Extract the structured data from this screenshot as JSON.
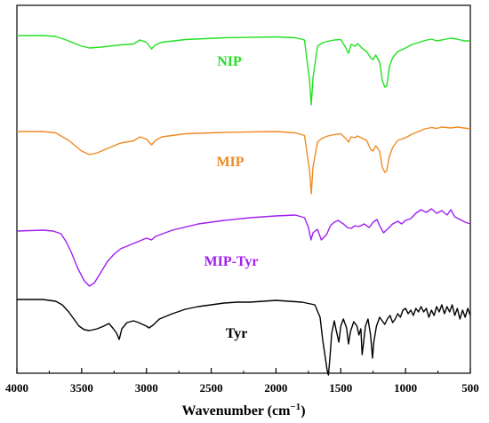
{
  "chart_data": {
    "type": "line",
    "xlabel_main": "Wavenumber (cm",
    "xlabel_sup": "−1",
    "xlabel_end": ")",
    "xlim": [
      4000,
      500
    ],
    "x_ticks": [
      4000,
      3500,
      3000,
      2500,
      2000,
      1500,
      1000,
      500
    ],
    "y_ticks_shown": false,
    "series": [
      {
        "name": "NIP",
        "color": "#22e022",
        "points": [
          [
            4000,
            0.0
          ],
          [
            3800,
            0.0
          ],
          [
            3700,
            -1.0
          ],
          [
            3620,
            -5.0
          ],
          [
            3500,
            -12.0
          ],
          [
            3440,
            -14.0
          ],
          [
            3350,
            -13.0
          ],
          [
            3200,
            -10.5
          ],
          [
            3100,
            -9.5
          ],
          [
            3050,
            -5.0
          ],
          [
            3000,
            -7.5
          ],
          [
            2960,
            -15.0
          ],
          [
            2930,
            -10.5
          ],
          [
            2880,
            -7.5
          ],
          [
            2700,
            -4.5
          ],
          [
            2400,
            -2.5
          ],
          [
            2000,
            -1.5
          ],
          [
            1850,
            -2.5
          ],
          [
            1780,
            -5.0
          ],
          [
            1740,
            -52.0
          ],
          [
            1728,
            -78.0
          ],
          [
            1715,
            -48.0
          ],
          [
            1680,
            -12.0
          ],
          [
            1640,
            -8.0
          ],
          [
            1600,
            -6.5
          ],
          [
            1550,
            -5.0
          ],
          [
            1500,
            -4.5
          ],
          [
            1460,
            -14.0
          ],
          [
            1440,
            -20.0
          ],
          [
            1420,
            -10.0
          ],
          [
            1390,
            -12.0
          ],
          [
            1370,
            -9.0
          ],
          [
            1330,
            -15.0
          ],
          [
            1300,
            -18.0
          ],
          [
            1270,
            -25.0
          ],
          [
            1250,
            -27.0
          ],
          [
            1230,
            -22.0
          ],
          [
            1200,
            -30.0
          ],
          [
            1180,
            -50.0
          ],
          [
            1160,
            -58.0
          ],
          [
            1145,
            -57.0
          ],
          [
            1125,
            -35.0
          ],
          [
            1100,
            -25.0
          ],
          [
            1060,
            -18.0
          ],
          [
            1000,
            -14.0
          ],
          [
            950,
            -10.0
          ],
          [
            900,
            -8.0
          ],
          [
            850,
            -5.5
          ],
          [
            800,
            -4.0
          ],
          [
            760,
            -6.0
          ],
          [
            720,
            -5.0
          ],
          [
            650,
            -3.0
          ],
          [
            600,
            -4.0
          ],
          [
            550,
            -6.0
          ],
          [
            500,
            -6.0
          ]
        ]
      },
      {
        "name": "MIP",
        "color": "#f08a24",
        "points": [
          [
            4000,
            0.0
          ],
          [
            3800,
            0.0
          ],
          [
            3700,
            -1.5
          ],
          [
            3600,
            -10.0
          ],
          [
            3500,
            -22.0
          ],
          [
            3440,
            -26.0
          ],
          [
            3380,
            -24.0
          ],
          [
            3300,
            -19.0
          ],
          [
            3200,
            -13.0
          ],
          [
            3100,
            -10.5
          ],
          [
            3050,
            -6.0
          ],
          [
            3000,
            -8.5
          ],
          [
            2960,
            -15.0
          ],
          [
            2930,
            -10.0
          ],
          [
            2880,
            -6.0
          ],
          [
            2700,
            -2.5
          ],
          [
            2400,
            -1.0
          ],
          [
            2000,
            0.0
          ],
          [
            1850,
            -1.5
          ],
          [
            1780,
            -4.5
          ],
          [
            1740,
            -45.0
          ],
          [
            1728,
            -70.0
          ],
          [
            1715,
            -40.0
          ],
          [
            1680,
            -12.0
          ],
          [
            1650,
            -8.0
          ],
          [
            1600,
            -5.0
          ],
          [
            1550,
            -3.5
          ],
          [
            1500,
            -2.5
          ],
          [
            1460,
            -8.0
          ],
          [
            1440,
            -12.0
          ],
          [
            1420,
            -6.0
          ],
          [
            1390,
            -7.0
          ],
          [
            1370,
            -5.0
          ],
          [
            1330,
            -8.0
          ],
          [
            1300,
            -10.0
          ],
          [
            1270,
            -20.0
          ],
          [
            1250,
            -22.0
          ],
          [
            1230,
            -16.0
          ],
          [
            1200,
            -22.0
          ],
          [
            1180,
            -40.0
          ],
          [
            1160,
            -46.0
          ],
          [
            1145,
            -44.0
          ],
          [
            1125,
            -28.0
          ],
          [
            1100,
            -18.0
          ],
          [
            1060,
            -10.0
          ],
          [
            1000,
            -7.0
          ],
          [
            950,
            -3.0
          ],
          [
            900,
            0.0
          ],
          [
            850,
            3.0
          ],
          [
            800,
            4.5
          ],
          [
            760,
            3.5
          ],
          [
            720,
            5.0
          ],
          [
            650,
            4.0
          ],
          [
            600,
            5.0
          ],
          [
            550,
            4.0
          ],
          [
            500,
            3.0
          ]
        ]
      },
      {
        "name": "MIP-Tyr",
        "color": "#a020f0",
        "points": [
          [
            4000,
            0.0
          ],
          [
            3800,
            1.0
          ],
          [
            3720,
            0.0
          ],
          [
            3660,
            -3.0
          ],
          [
            3620,
            -12.0
          ],
          [
            3580,
            -24.0
          ],
          [
            3530,
            -42.0
          ],
          [
            3480,
            -56.0
          ],
          [
            3440,
            -62.0
          ],
          [
            3400,
            -58.0
          ],
          [
            3350,
            -46.0
          ],
          [
            3300,
            -34.0
          ],
          [
            3250,
            -26.0
          ],
          [
            3200,
            -20.0
          ],
          [
            3100,
            -14.0
          ],
          [
            3000,
            -8.0
          ],
          [
            2960,
            -10.0
          ],
          [
            2930,
            -6.0
          ],
          [
            2800,
            1.0
          ],
          [
            2600,
            8.0
          ],
          [
            2400,
            12.0
          ],
          [
            2200,
            15.0
          ],
          [
            2000,
            17.0
          ],
          [
            1850,
            18.0
          ],
          [
            1780,
            15.0
          ],
          [
            1750,
            4.0
          ],
          [
            1730,
            -10.0
          ],
          [
            1715,
            -2.0
          ],
          [
            1680,
            2.0
          ],
          [
            1650,
            -10.0
          ],
          [
            1610,
            -4.0
          ],
          [
            1580,
            6.0
          ],
          [
            1550,
            10.0
          ],
          [
            1520,
            12.0
          ],
          [
            1480,
            8.0
          ],
          [
            1450,
            4.0
          ],
          [
            1420,
            3.0
          ],
          [
            1390,
            6.0
          ],
          [
            1360,
            5.0
          ],
          [
            1320,
            8.0
          ],
          [
            1280,
            4.0
          ],
          [
            1250,
            10.0
          ],
          [
            1220,
            13.0
          ],
          [
            1200,
            6.0
          ],
          [
            1170,
            -2.0
          ],
          [
            1140,
            2.0
          ],
          [
            1100,
            8.0
          ],
          [
            1060,
            11.0
          ],
          [
            1030,
            8.0
          ],
          [
            1000,
            12.0
          ],
          [
            960,
            14.0
          ],
          [
            920,
            20.0
          ],
          [
            880,
            24.0
          ],
          [
            840,
            21.0
          ],
          [
            800,
            25.0
          ],
          [
            760,
            20.0
          ],
          [
            720,
            23.0
          ],
          [
            680,
            18.0
          ],
          [
            650,
            24.0
          ],
          [
            620,
            16.0
          ],
          [
            580,
            13.0
          ],
          [
            540,
            10.0
          ],
          [
            500,
            8.0
          ]
        ]
      },
      {
        "name": "Tyr",
        "color": "#000000",
        "points": [
          [
            4000,
            0.0
          ],
          [
            3800,
            0.0
          ],
          [
            3700,
            -2.0
          ],
          [
            3650,
            -6.0
          ],
          [
            3600,
            -14.0
          ],
          [
            3560,
            -22.0
          ],
          [
            3520,
            -30.0
          ],
          [
            3480,
            -34.0
          ],
          [
            3440,
            -35.0
          ],
          [
            3380,
            -33.0
          ],
          [
            3330,
            -30.0
          ],
          [
            3290,
            -27.0
          ],
          [
            3260,
            -32.0
          ],
          [
            3230,
            -38.0
          ],
          [
            3210,
            -45.0
          ],
          [
            3190,
            -33.0
          ],
          [
            3150,
            -26.0
          ],
          [
            3100,
            -24.0
          ],
          [
            3060,
            -26.0
          ],
          [
            3030,
            -28.0
          ],
          [
            3000,
            -30.0
          ],
          [
            2980,
            -32.0
          ],
          [
            2950,
            -29.0
          ],
          [
            2900,
            -22.0
          ],
          [
            2800,
            -16.0
          ],
          [
            2700,
            -11.0
          ],
          [
            2600,
            -8.0
          ],
          [
            2500,
            -6.0
          ],
          [
            2400,
            -4.0
          ],
          [
            2300,
            -3.0
          ],
          [
            2200,
            -3.0
          ],
          [
            2100,
            -2.0
          ],
          [
            2000,
            -1.0
          ],
          [
            1900,
            -2.0
          ],
          [
            1800,
            -3.0
          ],
          [
            1700,
            -6.0
          ],
          [
            1660,
            -20.0
          ],
          [
            1640,
            -45.0
          ],
          [
            1620,
            -65.0
          ],
          [
            1605,
            -80.0
          ],
          [
            1595,
            -85.0
          ],
          [
            1585,
            -68.0
          ],
          [
            1570,
            -38.0
          ],
          [
            1550,
            -24.0
          ],
          [
            1535,
            -35.0
          ],
          [
            1515,
            -48.0
          ],
          [
            1500,
            -30.0
          ],
          [
            1480,
            -22.0
          ],
          [
            1455,
            -32.0
          ],
          [
            1440,
            -50.0
          ],
          [
            1425,
            -36.0
          ],
          [
            1400,
            -25.0
          ],
          [
            1375,
            -30.0
          ],
          [
            1360,
            -40.0
          ],
          [
            1345,
            -33.0
          ],
          [
            1335,
            -62.0
          ],
          [
            1325,
            -50.0
          ],
          [
            1310,
            -30.0
          ],
          [
            1290,
            -22.0
          ],
          [
            1270,
            -40.0
          ],
          [
            1255,
            -66.0
          ],
          [
            1245,
            -48.0
          ],
          [
            1225,
            -30.0
          ],
          [
            1200,
            -20.0
          ],
          [
            1180,
            -24.0
          ],
          [
            1160,
            -28.0
          ],
          [
            1140,
            -22.0
          ],
          [
            1120,
            -18.0
          ],
          [
            1100,
            -26.0
          ],
          [
            1080,
            -22.0
          ],
          [
            1060,
            -16.0
          ],
          [
            1040,
            -20.0
          ],
          [
            1020,
            -12.0
          ],
          [
            1000,
            -10.0
          ],
          [
            980,
            -16.0
          ],
          [
            960,
            -12.0
          ],
          [
            940,
            -18.0
          ],
          [
            920,
            -10.0
          ],
          [
            900,
            -14.0
          ],
          [
            880,
            -8.0
          ],
          [
            860,
            -14.0
          ],
          [
            840,
            -10.0
          ],
          [
            820,
            -20.0
          ],
          [
            800,
            -12.0
          ],
          [
            780,
            -18.0
          ],
          [
            760,
            -8.0
          ],
          [
            740,
            -14.0
          ],
          [
            720,
            -6.0
          ],
          [
            700,
            -16.0
          ],
          [
            680,
            -8.0
          ],
          [
            660,
            -14.0
          ],
          [
            640,
            -6.0
          ],
          [
            620,
            -18.0
          ],
          [
            600,
            -10.0
          ],
          [
            580,
            -22.0
          ],
          [
            560,
            -12.0
          ],
          [
            540,
            -20.0
          ],
          [
            520,
            -10.0
          ],
          [
            500,
            -18.0
          ]
        ]
      }
    ]
  }
}
